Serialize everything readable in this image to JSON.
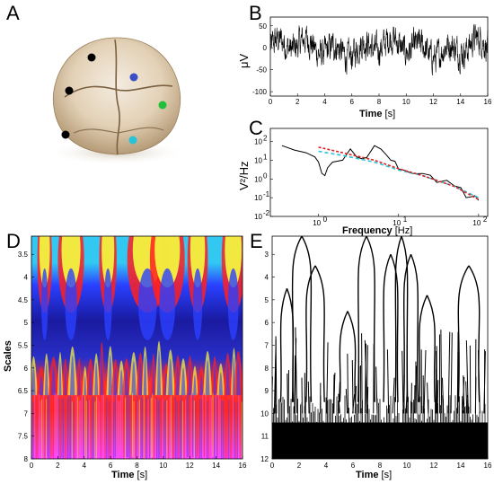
{
  "panels": {
    "A": {
      "letter": "A"
    },
    "B": {
      "letter": "B"
    },
    "C": {
      "letter": "C"
    },
    "D": {
      "letter": "D"
    },
    "E": {
      "letter": "E"
    }
  },
  "electrodes": [
    {
      "color": "#000000"
    },
    {
      "color": "#3a4fc4"
    },
    {
      "color": "#000000"
    },
    {
      "color": "#1fbf3a"
    },
    {
      "color": "#000000"
    },
    {
      "color": "#27c4d8"
    }
  ],
  "chart_data": [
    {
      "id": "B",
      "type": "line",
      "xlabel": "Time",
      "xunit": "[s]",
      "ylabel": "μV",
      "xlim": [
        0,
        16
      ],
      "ylim": [
        -110,
        70
      ],
      "xticks": [
        "0",
        "2",
        "4",
        "6",
        "8",
        "10",
        "12",
        "14",
        "16"
      ],
      "yticks": [
        "50",
        "0",
        "-50",
        "-100"
      ],
      "series": [
        {
          "color": "#000000",
          "description_values": "noisy EEG trace oscillating approx between -100 and 60 μV"
        }
      ]
    },
    {
      "id": "C",
      "type": "line",
      "xlabel": "Frequency",
      "xunit": "[Hz]",
      "ylabel": "V²/Hz",
      "xscale": "log",
      "yscale": "log",
      "xticks": [
        "10",
        "10",
        "10"
      ],
      "xtick_exp": [
        "0",
        "1",
        "2"
      ],
      "yticks": [
        "10",
        "10",
        "10",
        "10",
        "10"
      ],
      "ytick_exp": [
        "2",
        "1",
        "0",
        "-1",
        "-2"
      ],
      "xlim": [
        0.25,
        130
      ],
      "ylim": [
        0.01,
        500
      ],
      "series": [
        {
          "color": "#000000",
          "points": [
            [
              0.35,
              60
            ],
            [
              0.5,
              35
            ],
            [
              0.7,
              25
            ],
            [
              0.9,
              15
            ],
            [
              1.0,
              8
            ],
            [
              1.1,
              2
            ],
            [
              1.2,
              1.5
            ],
            [
              1.3,
              4
            ],
            [
              1.5,
              8
            ],
            [
              2,
              10
            ],
            [
              2.5,
              40
            ],
            [
              3,
              15
            ],
            [
              3.5,
              12
            ],
            [
              4,
              14
            ],
            [
              5,
              60
            ],
            [
              6,
              40
            ],
            [
              7,
              20
            ],
            [
              8,
              10
            ],
            [
              9,
              6
            ],
            [
              10,
              3
            ],
            [
              12,
              2
            ],
            [
              15,
              1.5
            ],
            [
              20,
              1.5
            ],
            [
              25,
              1.2
            ],
            [
              30,
              1
            ],
            [
              40,
              0.8
            ],
            [
              50,
              0.5
            ],
            [
              60,
              0.3
            ],
            [
              70,
              0.15
            ],
            [
              80,
              0.1
            ],
            [
              90,
              0.15
            ],
            [
              100,
              0.05
            ]
          ]
        },
        {
          "color": "#27c4d8",
          "dash": "4,3",
          "points": [
            [
              1.0,
              30
            ],
            [
              2,
              18
            ],
            [
              5,
              8
            ],
            [
              10,
              3
            ],
            [
              20,
              1.5
            ],
            [
              50,
              0.4
            ],
            [
              100,
              0.1
            ]
          ]
        },
        {
          "color": "#e02020",
          "dash": "3,2",
          "points": [
            [
              1.0,
              50
            ],
            [
              2,
              25
            ],
            [
              5,
              10
            ],
            [
              10,
              3.5
            ],
            [
              20,
              1.5
            ],
            [
              50,
              0.4
            ],
            [
              100,
              0.08
            ]
          ]
        }
      ]
    },
    {
      "id": "D",
      "type": "heatmap",
      "xlabel": "Time",
      "xunit": "[s]",
      "ylabel": "Scales",
      "xlim": [
        0,
        16
      ],
      "ylim": [
        3.1,
        8.0
      ],
      "xticks": [
        "0",
        "2",
        "4",
        "6",
        "8",
        "10",
        "12",
        "14",
        "16"
      ],
      "yticks": [
        "3.5",
        "4",
        "4.5",
        "5",
        "5.5",
        "6",
        "6.5",
        "7",
        "7.5",
        "8"
      ],
      "colormap": [
        "#0b0b8a",
        "#2a40ff",
        "#2dc8f0",
        "#f2f240",
        "#ff2020",
        "#ff5cff"
      ]
    },
    {
      "id": "E",
      "type": "line",
      "xlabel": "Time",
      "xunit": "[s]",
      "xlim": [
        0,
        16
      ],
      "ylim": [
        2.2,
        12
      ],
      "xticks": [
        "0",
        "2",
        "4",
        "6",
        "8",
        "10",
        "12",
        "14",
        "16"
      ],
      "yticks": [
        "3",
        "4",
        "5",
        "6",
        "7",
        "8",
        "9",
        "10",
        "11",
        "12"
      ],
      "series": [
        {
          "color": "#000000",
          "description_values": "wavelet modulus maxima lines converging toward small scales"
        }
      ]
    }
  ]
}
